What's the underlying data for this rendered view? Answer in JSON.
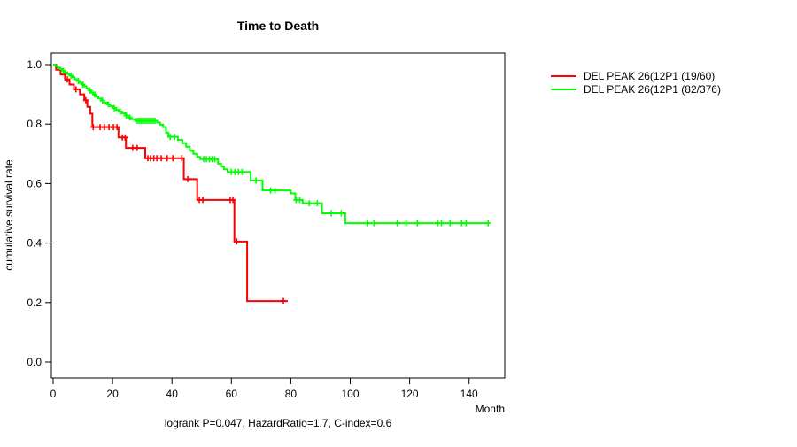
{
  "title": "Time to Death",
  "footnote": "logrank P=0.047, HazardRatio=1.7, C-index=0.6",
  "colors": {
    "series_red": "#ff0000",
    "series_green": "#00ff00",
    "axis": "#000000",
    "background": "#ffffff"
  },
  "chart_data": {
    "type": "line",
    "subtype": "kaplan-meier-step",
    "title": "Time to Death",
    "xlabel": "Month",
    "ylabel": "cumulative survival rate",
    "footnote": "logrank P=0.047, HazardRatio=1.7, C-index=0.6",
    "xlim": [
      0,
      152
    ],
    "ylim": [
      0.0,
      1.0
    ],
    "xticks": [
      "0",
      "20",
      "40",
      "60",
      "80",
      "100",
      "120",
      "140"
    ],
    "yticks": [
      "0.0",
      "0.2",
      "0.4",
      "0.6",
      "0.8",
      "1.0"
    ],
    "grid": false,
    "legend_position": "right-outside-top",
    "series": [
      {
        "name": "DEL PEAK 26(12P1 (19/60)",
        "color": "#ff0000",
        "events_ratio": "19/60",
        "points": [
          [
            0,
            1.0
          ],
          [
            1,
            0.983
          ],
          [
            2.5,
            0.967
          ],
          [
            4,
            0.95
          ],
          [
            5.5,
            0.933
          ],
          [
            7,
            0.917
          ],
          [
            9,
            0.9
          ],
          [
            10.5,
            0.88
          ],
          [
            11.5,
            0.858
          ],
          [
            12.5,
            0.835
          ],
          [
            13.2,
            0.79
          ],
          [
            22,
            0.755
          ],
          [
            24.5,
            0.72
          ],
          [
            31,
            0.685
          ],
          [
            44,
            0.615
          ],
          [
            48.5,
            0.545
          ],
          [
            61,
            0.405
          ],
          [
            65.3,
            0.205
          ],
          [
            79,
            0.205
          ]
        ],
        "censor_months": [
          4.8,
          7.7,
          11,
          13.5,
          15.8,
          17.3,
          18.8,
          20.3,
          21.5,
          23.3,
          24.2,
          26.8,
          28.3,
          31.9,
          32.8,
          33.9,
          34.9,
          36.4,
          38.4,
          40.3,
          43.3,
          45.3,
          49.2,
          50.4,
          59.6,
          60.5,
          61.8,
          77.5
        ]
      },
      {
        "name": "DEL PEAK 26(12P1 (82/376)",
        "color": "#00ff00",
        "events_ratio": "82/376",
        "points": [
          [
            0,
            1.0
          ],
          [
            0.8,
            0.995
          ],
          [
            1.6,
            0.99
          ],
          [
            2.4,
            0.985
          ],
          [
            3.2,
            0.979
          ],
          [
            4,
            0.974
          ],
          [
            4.8,
            0.968
          ],
          [
            5.6,
            0.963
          ],
          [
            6.4,
            0.957
          ],
          [
            7.2,
            0.951
          ],
          [
            8,
            0.945
          ],
          [
            8.8,
            0.939
          ],
          [
            9.6,
            0.933
          ],
          [
            10.4,
            0.927
          ],
          [
            11.2,
            0.92
          ],
          [
            12,
            0.913
          ],
          [
            12.8,
            0.906
          ],
          [
            13.6,
            0.899
          ],
          [
            14.4,
            0.892
          ],
          [
            15.2,
            0.886
          ],
          [
            16.2,
            0.879
          ],
          [
            17.2,
            0.872
          ],
          [
            18.2,
            0.866
          ],
          [
            19.2,
            0.86
          ],
          [
            20.2,
            0.854
          ],
          [
            21.2,
            0.848
          ],
          [
            22.2,
            0.842
          ],
          [
            23.2,
            0.836
          ],
          [
            24.2,
            0.829
          ],
          [
            25.2,
            0.822
          ],
          [
            26.4,
            0.816
          ],
          [
            27.6,
            0.811
          ],
          [
            35,
            0.805
          ],
          [
            36,
            0.798
          ],
          [
            37,
            0.79
          ],
          [
            38,
            0.771
          ],
          [
            38.8,
            0.757
          ],
          [
            42,
            0.747
          ],
          [
            43.5,
            0.736
          ],
          [
            44.8,
            0.724
          ],
          [
            46,
            0.71
          ],
          [
            47.2,
            0.7
          ],
          [
            48.5,
            0.69
          ],
          [
            49.5,
            0.682
          ],
          [
            55.5,
            0.667
          ],
          [
            56.5,
            0.657
          ],
          [
            57.5,
            0.648
          ],
          [
            58.7,
            0.639
          ],
          [
            66.5,
            0.61
          ],
          [
            70.5,
            0.577
          ],
          [
            80,
            0.567
          ],
          [
            81.5,
            0.545
          ],
          [
            84,
            0.534
          ],
          [
            90.5,
            0.5
          ],
          [
            98.3,
            0.467
          ],
          [
            146.7,
            0.467
          ]
        ],
        "censor_months": [
          3.5,
          6,
          8.5,
          10,
          12.4,
          14,
          16.6,
          18.6,
          20.6,
          22.6,
          24.6,
          25.8,
          28.3,
          28.9,
          29.5,
          30.1,
          30.7,
          31.3,
          31.9,
          32.5,
          33.1,
          33.7,
          34.3,
          39.4,
          40.9,
          50.7,
          51.6,
          52.6,
          53.5,
          54.4,
          60,
          61.2,
          62.4,
          63.6,
          68.3,
          73.2,
          74.7,
          81.8,
          83,
          86.2,
          88.9,
          93.6,
          97,
          105.7,
          108,
          115.8,
          118.8,
          122.6,
          129.5,
          130.7,
          133.6,
          137.5,
          139,
          146.4
        ]
      }
    ]
  }
}
